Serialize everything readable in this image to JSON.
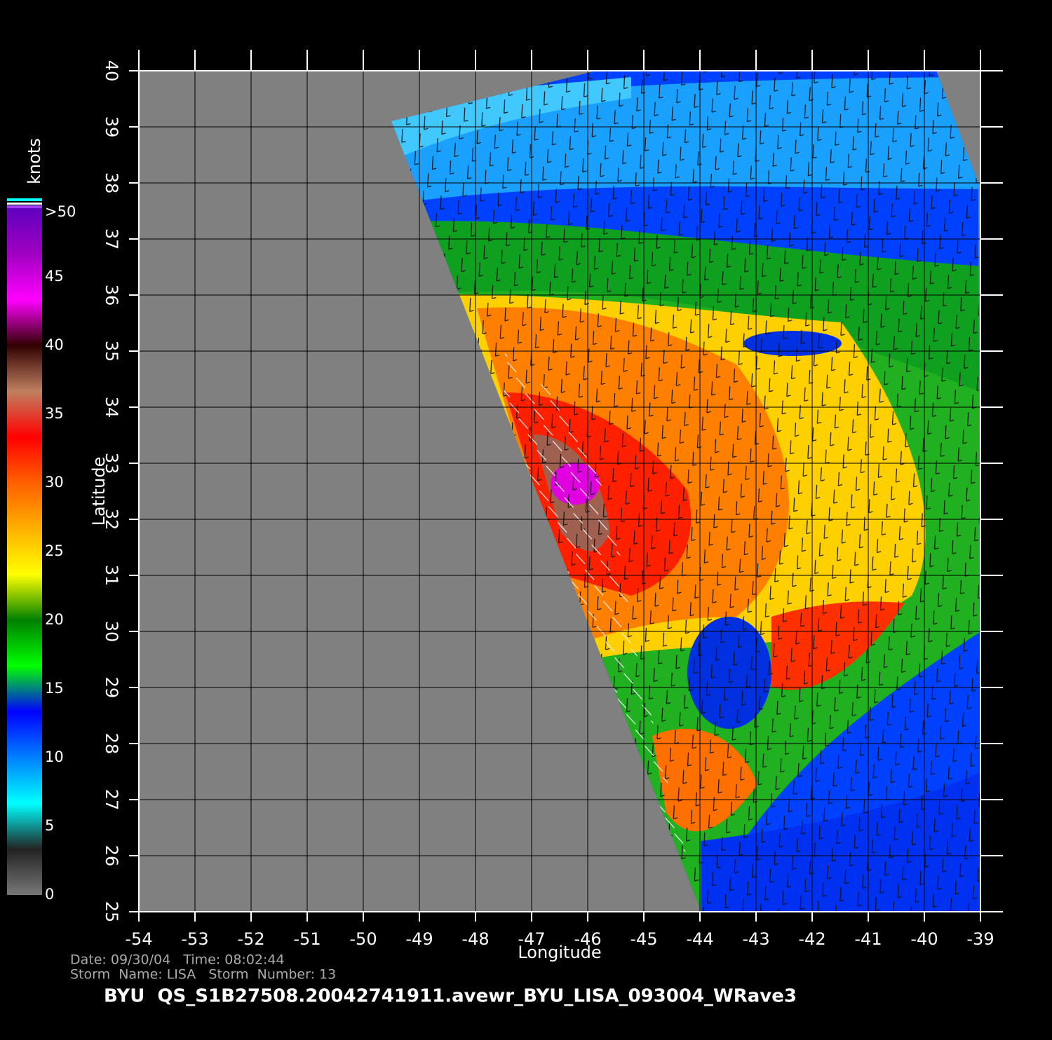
{
  "map": {
    "title": "BYU  QS_S1B27508.20042741911.avewr_BYU_LISA_093004_WRave3",
    "info_lines": [
      "Date: 09/30/04   Time: 08:02:44",
      "Storm  Name: LISA   Storm  Number: 13"
    ],
    "xlabel": "Longitude",
    "ylabel": "Latitude",
    "xlim": [
      -54,
      -39
    ],
    "ylim": [
      25,
      40
    ],
    "xticks": [
      -54,
      -53,
      -52,
      -51,
      -50,
      -49,
      -48,
      -47,
      -46,
      -45,
      -44,
      -43,
      -42,
      -41,
      -40,
      -39
    ],
    "yticks": [
      25,
      26,
      27,
      28,
      29,
      30,
      31,
      32,
      33,
      34,
      35,
      36,
      37,
      38,
      39,
      40
    ],
    "colorbar": {
      "label": "knots",
      "lim": [
        0,
        50
      ],
      "ticks": [
        0,
        5,
        10,
        15,
        20,
        25,
        30,
        35,
        40,
        45,
        {
          "value": 50,
          "label": ">50"
        }
      ],
      "colors": [
        "#777777",
        "#222222",
        "#00ffff",
        "#0080ff",
        "#0000ff",
        "#00ff00",
        "#008000",
        "#ffff00",
        "#ffb000",
        "#ff6000",
        "#ff0000",
        "#c08060",
        "#300000",
        "#ff00ff",
        "#a000c0",
        "#6000c0"
      ]
    }
  }
}
